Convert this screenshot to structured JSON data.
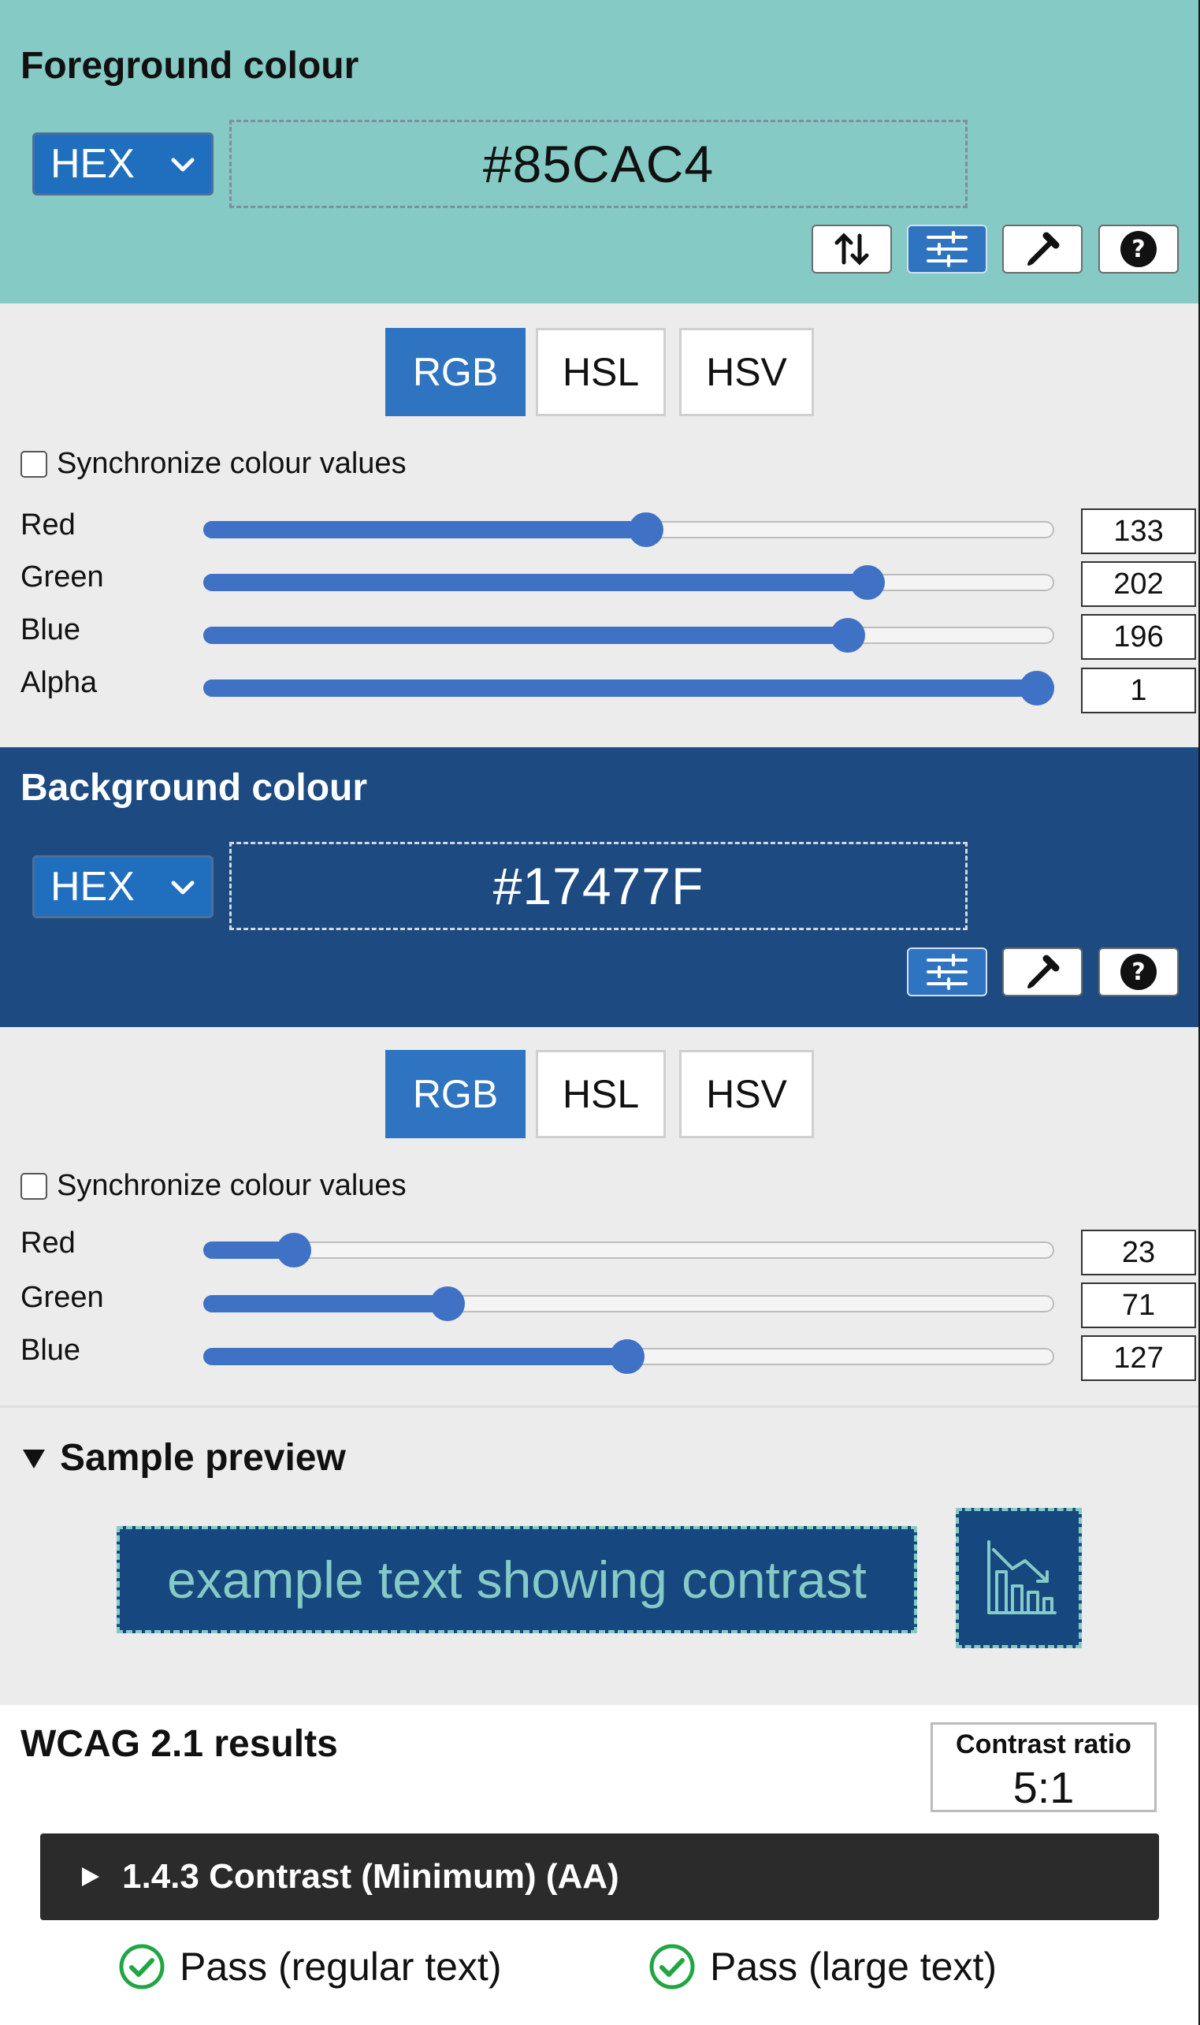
{
  "foreground": {
    "title": "Foreground colour",
    "format": "HEX",
    "hex": "#85CAC4",
    "color": "#85CAC4",
    "tools": [
      "swap-icon",
      "sliders-icon",
      "eyedropper-icon",
      "help-icon"
    ],
    "tabs": [
      "RGB",
      "HSL",
      "HSV"
    ],
    "active_tab": "RGB",
    "sync_label": "Synchronize colour values",
    "sliders": [
      {
        "label": "Red",
        "value": "133",
        "fraction": 0.5216
      },
      {
        "label": "Green",
        "value": "202",
        "fraction": 0.7922
      },
      {
        "label": "Blue",
        "value": "196",
        "fraction": 0.7686
      },
      {
        "label": "Alpha",
        "value": "1",
        "fraction": 1.0
      }
    ]
  },
  "background": {
    "title": "Background colour",
    "format": "HEX",
    "hex": "#17477F",
    "color": "#17477F",
    "tools": [
      "sliders-icon",
      "eyedropper-icon",
      "help-icon"
    ],
    "tabs": [
      "RGB",
      "HSL",
      "HSV"
    ],
    "active_tab": "RGB",
    "sync_label": "Synchronize colour values",
    "sliders": [
      {
        "label": "Red",
        "value": "23",
        "fraction": 0.0902
      },
      {
        "label": "Green",
        "value": "71",
        "fraction": 0.2784
      },
      {
        "label": "Blue",
        "value": "127",
        "fraction": 0.498
      }
    ]
  },
  "preview": {
    "title": "Sample preview",
    "sample_text": "example text showing contrast",
    "icon": "chart-down-icon"
  },
  "results": {
    "title": "WCAG 2.1 results",
    "ratio_label": "Contrast ratio",
    "ratio_value": "5:1",
    "criterion": "1.4.3 Contrast (Minimum) (AA)",
    "pass_regular": "Pass (regular text)",
    "pass_large": "Pass (large text)",
    "pass_color": "#22a544"
  }
}
